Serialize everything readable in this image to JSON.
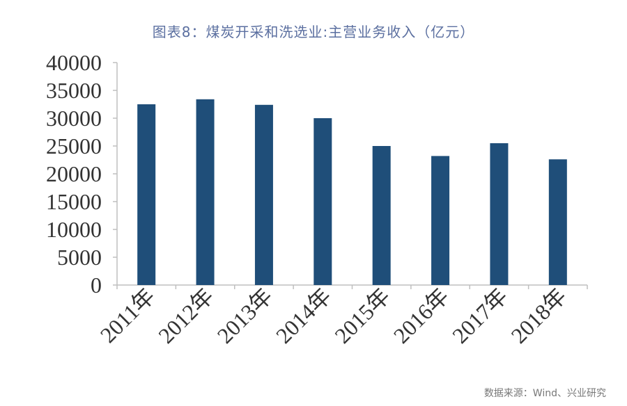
{
  "chart_data": {
    "type": "bar",
    "title": "图表8：煤炭开采和洗选业:主营业务收入（亿元）",
    "categories": [
      "2011年",
      "2012年",
      "2013年",
      "2014年",
      "2015年",
      "2016年",
      "2017年",
      "2018年"
    ],
    "values": [
      32500,
      33400,
      32400,
      30000,
      25000,
      23200,
      25500,
      22600
    ],
    "ylim": [
      0,
      40000
    ],
    "yticks": [
      0,
      5000,
      10000,
      15000,
      20000,
      25000,
      30000,
      35000,
      40000
    ],
    "xlabel": "",
    "ylabel": "",
    "bar_color": "#1f4e79",
    "grid": false
  },
  "source": "数据来源：Wind、兴业研究"
}
